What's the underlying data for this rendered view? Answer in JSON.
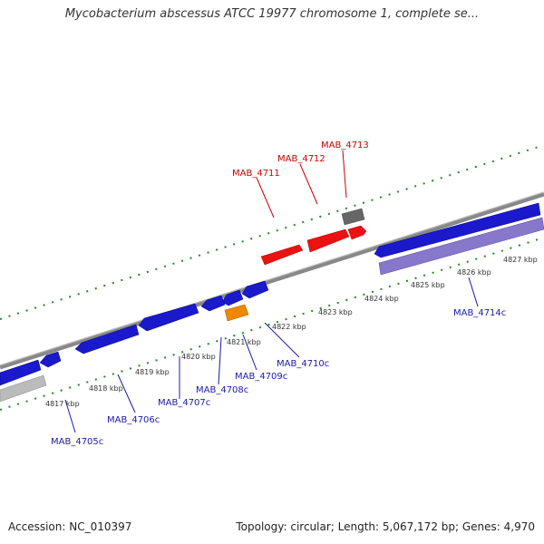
{
  "title": "Mycobacterium abscessus ATCC 19977 chromosome 1, complete se...",
  "footer": {
    "accession": "Accession: NC_010397",
    "summary": "Topology: circular; Length: 5,067,172 bp; Genes: 4,970"
  },
  "colors": {
    "forward_gene": "#ee1111",
    "reverse_gene": "#1a1acc",
    "highlight_gene": "#ee8800",
    "pseudo_gene": "#8878cc",
    "gray_gene": "#555555",
    "backbone": "#888888",
    "tick": "#228822",
    "label_red": "#cc0000",
    "label_blue": "#1a1aaa"
  },
  "scale_labels": [
    "4817 kbp",
    "4818 kbp",
    "4819 kbp",
    "4820 kbp",
    "4821 kbp",
    "4822 kbp",
    "4823 kbp",
    "4824 kbp",
    "4825 kbp",
    "4826 kbp",
    "4827 kbp"
  ],
  "gene_labels_top": [
    "MAB_4711",
    "MAB_4712",
    "MAB_4713"
  ],
  "gene_labels_bottom": [
    "MAB_4705c",
    "MAB_4706c",
    "MAB_4707c",
    "MAB_4708c",
    "MAB_4709c",
    "MAB_4710c",
    "MAB_4714c"
  ]
}
